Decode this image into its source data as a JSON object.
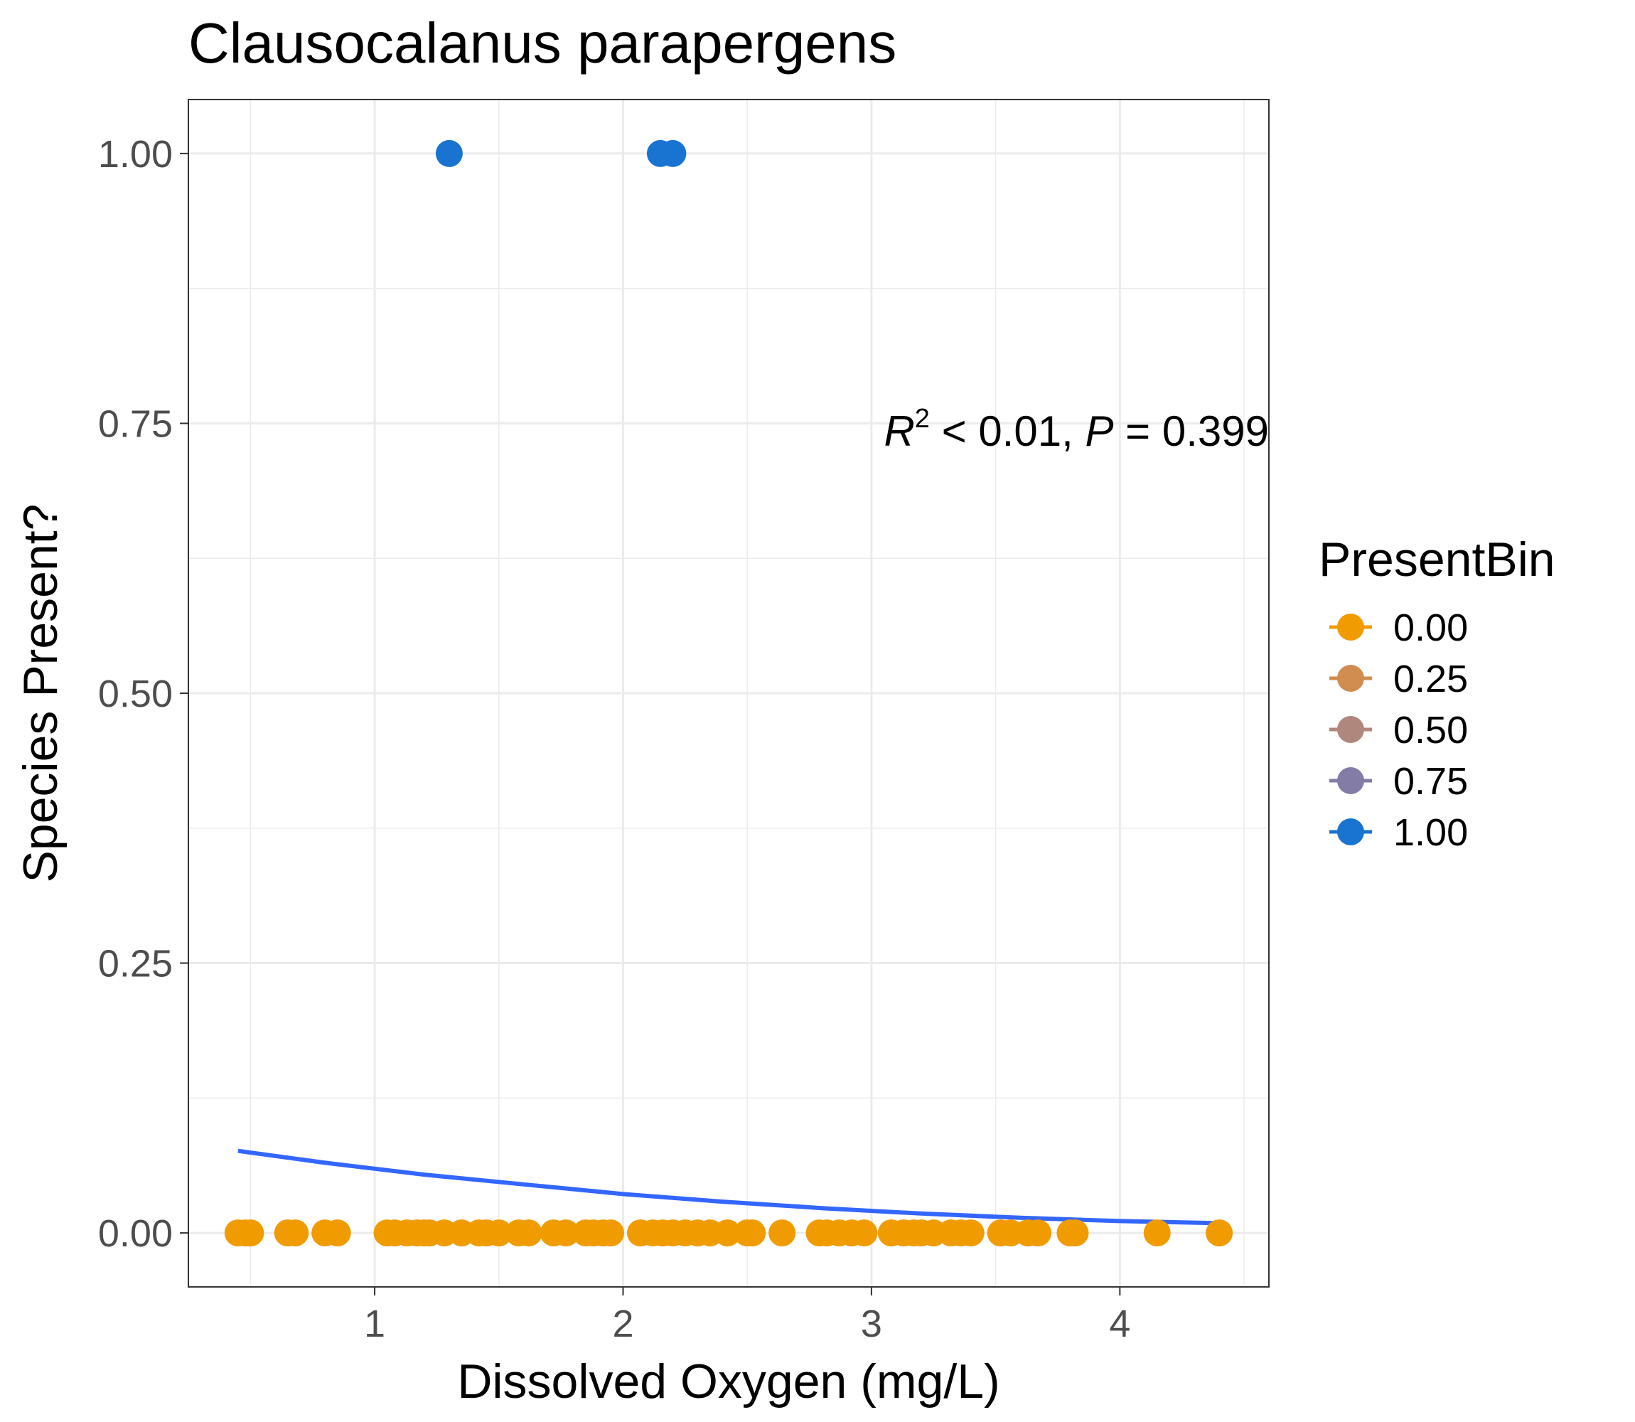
{
  "chart_data": {
    "type": "scatter",
    "title": "Clausocalanus parapergens",
    "xlabel": "Dissolved Oxygen (mg/L)",
    "ylabel": "Species Present?",
    "xlim": [
      0.25,
      4.6
    ],
    "ylim": [
      -0.05,
      1.05
    ],
    "x_ticks": [
      1,
      2,
      3,
      4
    ],
    "y_ticks": [
      0.0,
      0.25,
      0.5,
      0.75,
      1.0
    ],
    "x_tick_labels": [
      "1",
      "2",
      "3",
      "4"
    ],
    "y_tick_labels": [
      "0.00",
      "0.25",
      "0.50",
      "0.75",
      "1.00"
    ],
    "grid": true,
    "legend_position": "right",
    "legend_title": "PresentBin",
    "legend": [
      {
        "label": "0.00",
        "color": "#F09B00"
      },
      {
        "label": "0.25",
        "color": "#D18D4F"
      },
      {
        "label": "0.50",
        "color": "#B0877C"
      },
      {
        "label": "0.75",
        "color": "#827CA6"
      },
      {
        "label": "1.00",
        "color": "#1874D0"
      }
    ],
    "annotation": {
      "r_symbol": "R",
      "r_exponent": "2",
      "r_text": " < 0.01, ",
      "p_symbol": "P",
      "p_text": " = 0.399"
    },
    "series": [
      {
        "color": "#F09B00",
        "points": [
          [
            0.45,
            0
          ],
          [
            0.48,
            0
          ],
          [
            0.5,
            0
          ],
          [
            0.65,
            0
          ],
          [
            0.68,
            0
          ],
          [
            0.8,
            0
          ],
          [
            0.85,
            0
          ],
          [
            1.05,
            0
          ],
          [
            1.08,
            0
          ],
          [
            1.13,
            0
          ],
          [
            1.17,
            0
          ],
          [
            1.2,
            0
          ],
          [
            1.22,
            0
          ],
          [
            1.28,
            0
          ],
          [
            1.35,
            0
          ],
          [
            1.42,
            0
          ],
          [
            1.45,
            0
          ],
          [
            1.5,
            0
          ],
          [
            1.58,
            0
          ],
          [
            1.62,
            0
          ],
          [
            1.72,
            0
          ],
          [
            1.77,
            0
          ],
          [
            1.85,
            0
          ],
          [
            1.88,
            0
          ],
          [
            1.92,
            0
          ],
          [
            1.95,
            0
          ],
          [
            2.07,
            0
          ],
          [
            2.12,
            0
          ],
          [
            2.16,
            0
          ],
          [
            2.2,
            0
          ],
          [
            2.25,
            0
          ],
          [
            2.3,
            0
          ],
          [
            2.35,
            0
          ],
          [
            2.42,
            0
          ],
          [
            2.5,
            0
          ],
          [
            2.52,
            0
          ],
          [
            2.64,
            0
          ],
          [
            2.79,
            0
          ],
          [
            2.82,
            0
          ],
          [
            2.87,
            0
          ],
          [
            2.92,
            0
          ],
          [
            2.97,
            0
          ],
          [
            3.08,
            0
          ],
          [
            3.13,
            0
          ],
          [
            3.17,
            0
          ],
          [
            3.2,
            0
          ],
          [
            3.25,
            0
          ],
          [
            3.32,
            0
          ],
          [
            3.36,
            0
          ],
          [
            3.4,
            0
          ],
          [
            3.52,
            0
          ],
          [
            3.56,
            0
          ],
          [
            3.63,
            0
          ],
          [
            3.67,
            0
          ],
          [
            3.8,
            0
          ],
          [
            3.82,
            0
          ],
          [
            4.15,
            0
          ],
          [
            4.4,
            0
          ]
        ]
      },
      {
        "color": "#1874D0",
        "points": [
          [
            1.3,
            1
          ],
          [
            2.15,
            1
          ],
          [
            2.2,
            1
          ]
        ]
      }
    ],
    "fit_line": {
      "color": "#3366FF",
      "points": [
        [
          0.45,
          0.076
        ],
        [
          0.8,
          0.065
        ],
        [
          1.2,
          0.054
        ],
        [
          1.6,
          0.045
        ],
        [
          2.0,
          0.036
        ],
        [
          2.4,
          0.029
        ],
        [
          2.8,
          0.023
        ],
        [
          3.2,
          0.018
        ],
        [
          3.6,
          0.014
        ],
        [
          4.0,
          0.011
        ],
        [
          4.4,
          0.009
        ]
      ]
    }
  }
}
